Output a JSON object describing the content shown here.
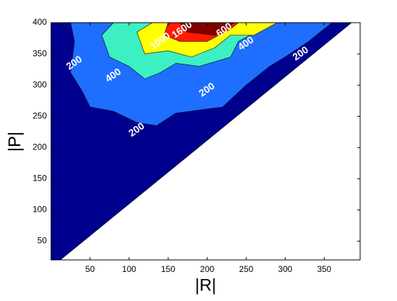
{
  "chart_data": {
    "type": "contour",
    "x_label": "|R|",
    "y_label": "|P|",
    "xlim": [
      0,
      396
    ],
    "ylim": [
      20,
      400
    ],
    "xticks": [
      50,
      100,
      150,
      200,
      250,
      300,
      350
    ],
    "yticks": [
      50,
      100,
      150,
      200,
      250,
      300,
      350,
      400
    ],
    "regions": [
      {
        "color": "#00008f",
        "x": [
          0,
          12,
          385,
          0
        ],
        "y": [
          20,
          20,
          400,
          400
        ]
      },
      {
        "color": "#1e6fff",
        "x": [
          25,
          30,
          25,
          40,
          50,
          80,
          110,
          135,
          160,
          190,
          220,
          250,
          280,
          300,
          330,
          360
        ],
        "y": [
          400,
          370,
          320,
          290,
          265,
          258,
          240,
          235,
          255,
          260,
          265,
          300,
          330,
          345,
          370,
          400
        ]
      },
      {
        "color": "#3cf0c3",
        "x": [
          80,
          65,
          75,
          100,
          120,
          140,
          160,
          190,
          230,
          240,
          270,
          280
        ],
        "y": [
          400,
          380,
          345,
          330,
          310,
          320,
          335,
          330,
          345,
          370,
          390,
          400
        ]
      },
      {
        "color": "#ffff00",
        "x": [
          130,
          110,
          120,
          150,
          180,
          210,
          230,
          260,
          290
        ],
        "y": [
          400,
          385,
          350,
          355,
          345,
          360,
          380,
          380,
          400
        ]
      },
      {
        "color": "#ff1a00",
        "x": [
          150,
          145,
          165,
          200,
          230,
          240
        ],
        "y": [
          400,
          380,
          370,
          370,
          390,
          400
        ]
      },
      {
        "color": "#800000",
        "x": [
          165,
          175,
          210,
          235
        ],
        "y": [
          400,
          385,
          380,
          400
        ]
      }
    ],
    "contour_labels": [
      {
        "level": 200,
        "x": 30,
        "y": 335
      },
      {
        "level": 400,
        "x": 80,
        "y": 315
      },
      {
        "level": 200,
        "x": 110,
        "y": 228
      },
      {
        "level": 200,
        "x": 200,
        "y": 292
      },
      {
        "level": 1000,
        "x": 140,
        "y": 370
      },
      {
        "level": 1600,
        "x": 168,
        "y": 388
      },
      {
        "level": 600,
        "x": 222,
        "y": 388
      },
      {
        "level": 400,
        "x": 250,
        "y": 366
      },
      {
        "level": 200,
        "x": 320,
        "y": 350
      }
    ]
  }
}
